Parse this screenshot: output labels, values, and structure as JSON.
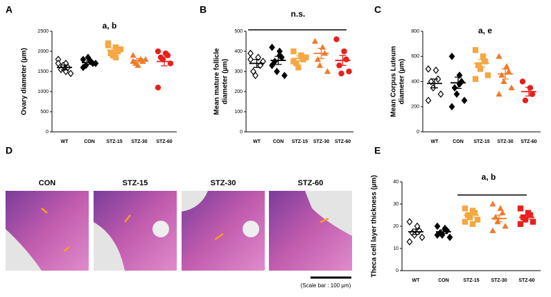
{
  "chart_data": [
    {
      "type": "dot",
      "panel": "A",
      "ylabel": [
        "Ovary diameter (µm)"
      ],
      "annotation": "a, b",
      "categories": [
        "WT",
        "CON",
        "STZ-15",
        "STZ-30",
        "STZ-60"
      ],
      "colors": [
        "#000000",
        "#000000",
        "#f5a742",
        "#f07b2a",
        "#e8201c"
      ],
      "markers": [
        "open-diamond",
        "diamond",
        "square",
        "triangle",
        "circle"
      ],
      "points": [
        [
          1800,
          1700,
          1600,
          1550,
          1650,
          1450,
          1700,
          1500
        ],
        [
          1800,
          1750,
          1700,
          1650,
          1850,
          1700,
          1600,
          1750
        ],
        [
          2200,
          2100,
          2000,
          1950,
          1900,
          2050,
          2150,
          1850
        ],
        [
          1900,
          1800,
          1750,
          1700,
          1650,
          1800,
          1750
        ],
        [
          2000,
          1950,
          1900,
          1850,
          1800,
          1700,
          1100
        ]
      ],
      "means": [
        1600,
        1720,
        2030,
        1780,
        1750
      ],
      "sems": [
        60,
        40,
        50,
        40,
        110
      ],
      "ylim": [
        0,
        2500
      ],
      "yticks": [
        0,
        500,
        1000,
        1500,
        2000,
        2500
      ]
    },
    {
      "type": "dot",
      "panel": "B",
      "ylabel": [
        "Mean mature follicle",
        "diameter (µm)"
      ],
      "annotation": "n.s.",
      "categories": [
        "WT",
        "CON",
        "STZ-15",
        "STZ-30",
        "STZ-60"
      ],
      "colors": [
        "#000000",
        "#000000",
        "#f5a742",
        "#f07b2a",
        "#e8201c"
      ],
      "markers": [
        "open-diamond",
        "diamond",
        "square",
        "triangle",
        "circle"
      ],
      "points": [
        [
          390,
          370,
          330,
          300,
          280,
          350,
          360
        ],
        [
          420,
          400,
          370,
          350,
          300,
          280,
          330,
          380
        ],
        [
          400,
          380,
          360,
          340,
          320,
          370,
          350,
          380
        ],
        [
          450,
          420,
          390,
          360,
          330,
          300
        ],
        [
          460,
          400,
          360,
          330,
          290,
          300
        ]
      ],
      "means": [
        340,
        355,
        365,
        390,
        355
      ],
      "sems": [
        20,
        20,
        12,
        25,
        25
      ],
      "ylim": [
        0,
        500
      ],
      "yticks": [
        0,
        100,
        200,
        300,
        400,
        500
      ]
    },
    {
      "type": "dot",
      "panel": "C",
      "ylabel": [
        "Mean Corpus Luteum",
        "diameter (µm)"
      ],
      "annotation": "a, e",
      "categories": [
        "WT",
        "CON",
        "STZ-15",
        "STZ-30",
        "STZ-60"
      ],
      "colors": [
        "#000000",
        "#000000",
        "#f5a742",
        "#f07b2a",
        "#e8201c"
      ],
      "markers": [
        "open-diamond",
        "diamond",
        "square",
        "triangle",
        "circle"
      ],
      "points": [
        [
          500,
          490,
          420,
          400,
          350,
          300,
          250
        ],
        [
          600,
          450,
          400,
          350,
          300,
          250,
          200,
          380
        ],
        [
          650,
          600,
          560,
          530,
          500,
          450,
          420
        ],
        [
          600,
          520,
          480,
          450,
          400,
          350,
          300
        ],
        [
          400,
          350,
          300,
          250
        ]
      ],
      "means": [
        385,
        390,
        545,
        460,
        320
      ],
      "sems": [
        35,
        45,
        30,
        40,
        35
      ],
      "ylim": [
        0,
        800
      ],
      "yticks": [
        0,
        200,
        400,
        600,
        800
      ]
    },
    {
      "type": "dot",
      "panel": "E",
      "ylabel": [
        "Theca cell layer thickness (µm)"
      ],
      "annotation": "a, b",
      "categories": [
        "WT",
        "CON",
        "STZ-15",
        "STZ-30",
        "STZ-60"
      ],
      "colors": [
        "#000000",
        "#000000",
        "#f5a742",
        "#f07b2a",
        "#e8201c"
      ],
      "markers": [
        "open-diamond",
        "diamond",
        "square",
        "triangle",
        "square"
      ],
      "points": [
        [
          22,
          20,
          18,
          17,
          16,
          15,
          13
        ],
        [
          20,
          19,
          18,
          17,
          16,
          15,
          16
        ],
        [
          28,
          27,
          26,
          25,
          24,
          23,
          22,
          21
        ],
        [
          30,
          28,
          26,
          24,
          22,
          20,
          18
        ],
        [
          28,
          26,
          25,
          24,
          23,
          22,
          21
        ]
      ],
      "means": [
        17.5,
        17.5,
        25,
        23.5,
        24
      ],
      "sems": [
        1.2,
        0.8,
        0.8,
        1.5,
        0.8
      ],
      "ylim": [
        0,
        40
      ],
      "yticks": [
        0,
        10,
        20,
        30,
        40
      ]
    }
  ],
  "figure_d": {
    "panel": "D",
    "titles": [
      "CON",
      "STZ-15",
      "STZ-30",
      "STZ-60"
    ],
    "scale_bar": "(Scale bar : 100 µm)"
  }
}
